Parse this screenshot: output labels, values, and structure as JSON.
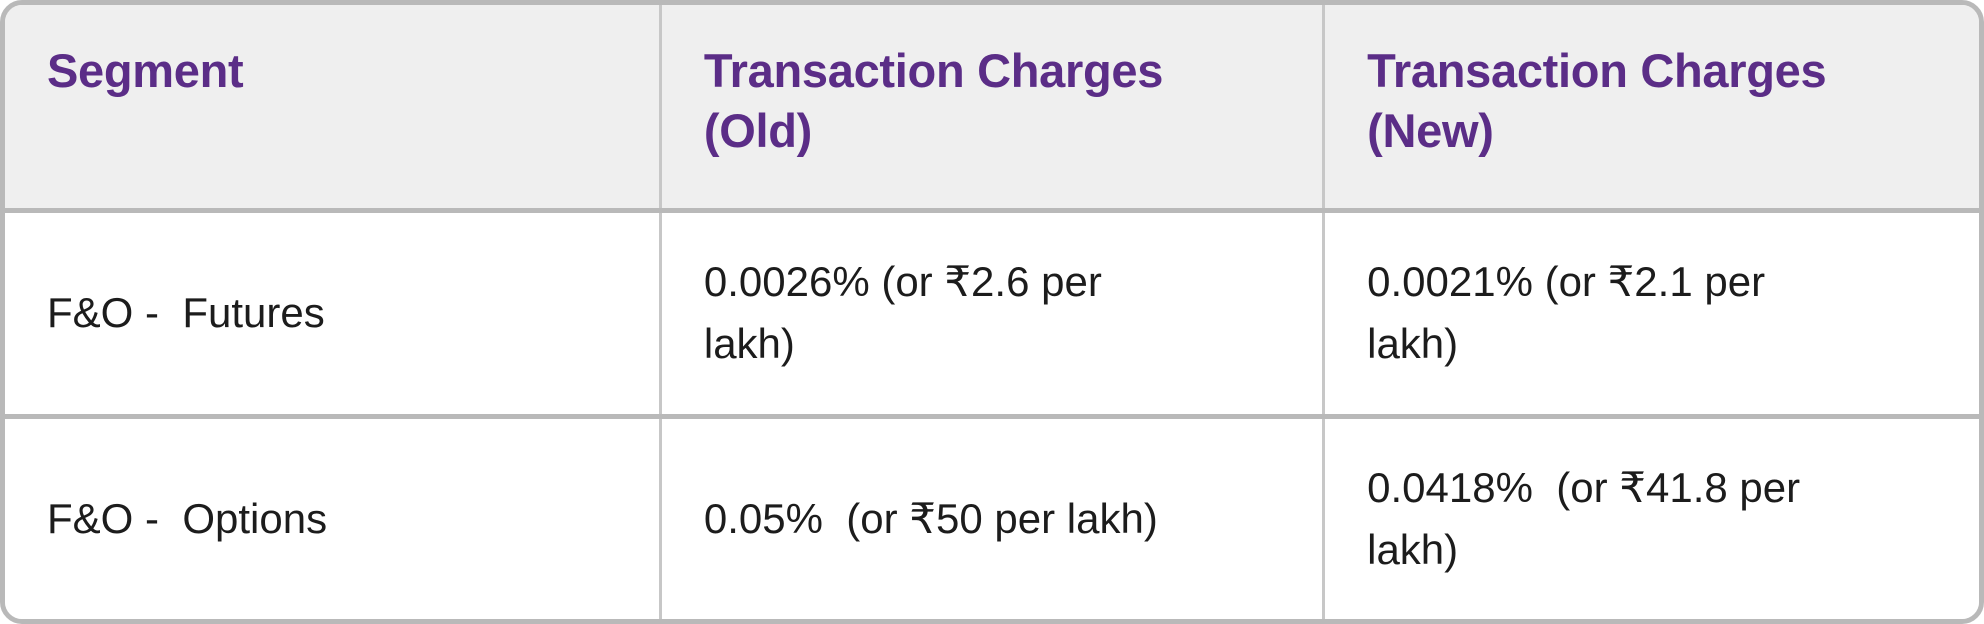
{
  "chart_data": {
    "type": "table",
    "columns": [
      "Segment",
      "Transaction Charges (Old)",
      "Transaction Charges (New)"
    ],
    "rows": [
      [
        "F&O - Futures",
        "0.0026% (or ₹2.6 per lakh)",
        "0.0021% (or ₹2.1 per lakh)"
      ],
      [
        "F&O - Options",
        "0.05% (or ₹50 per lakh)",
        "0.0418% (or ₹41.8 per lakh)"
      ]
    ],
    "layout": {
      "header_row": true,
      "grid": "full",
      "corner_style": "rounded"
    }
  },
  "table": {
    "headers": {
      "segment": "Segment",
      "old": "Transaction Charges\n(Old)",
      "new": "Transaction Charges\n(New)"
    },
    "rows": [
      {
        "segment": "F&O -  Futures",
        "old": "0.0026% (or ₹2.6 per\nlakh)",
        "new": "0.0021% (or ₹2.1 per\nlakh)"
      },
      {
        "segment": "F&O -  Options",
        "old": "0.05%  (or ₹50 per lakh)",
        "new": "0.0418%  (or ₹41.8 per\nlakh)"
      }
    ],
    "colors": {
      "header_text": "#5b2d87",
      "header_background": "#efefef",
      "body_text": "#1c1c1c",
      "row_background": "#ffffff",
      "border_outer": "#b9b9b9",
      "border_inner": "#c7c7c7"
    }
  }
}
